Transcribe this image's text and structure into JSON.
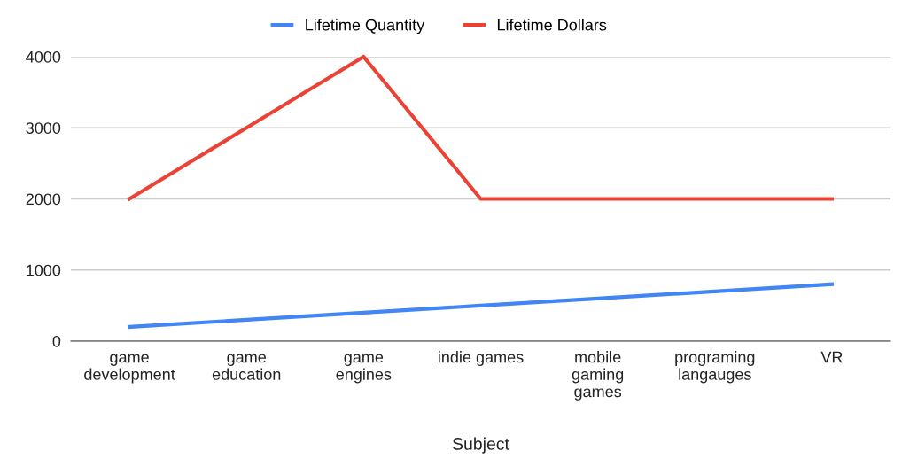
{
  "chart_data": {
    "type": "line",
    "xlabel": "Subject",
    "categories": [
      "game\ndevelopment",
      "game\neducation",
      "game\nengines",
      "indie games",
      "mobile\ngaming\ngames",
      "programing\nlangauges",
      "VR"
    ],
    "series": [
      {
        "name": "Lifetime Quantity",
        "color": "#4285f4",
        "values": [
          200,
          300,
          400,
          500,
          600,
          700,
          800
        ]
      },
      {
        "name": "Lifetime Dollars",
        "color": "#ea4335",
        "values": [
          2000,
          3000,
          4000,
          2000,
          2000,
          2000,
          2000
        ]
      }
    ],
    "ylim": [
      0,
      4000
    ],
    "yticks": [
      0,
      1000,
      2000,
      3000,
      4000
    ],
    "grid": "y",
    "legend": "top",
    "marker": "none",
    "line_style": "solid"
  }
}
